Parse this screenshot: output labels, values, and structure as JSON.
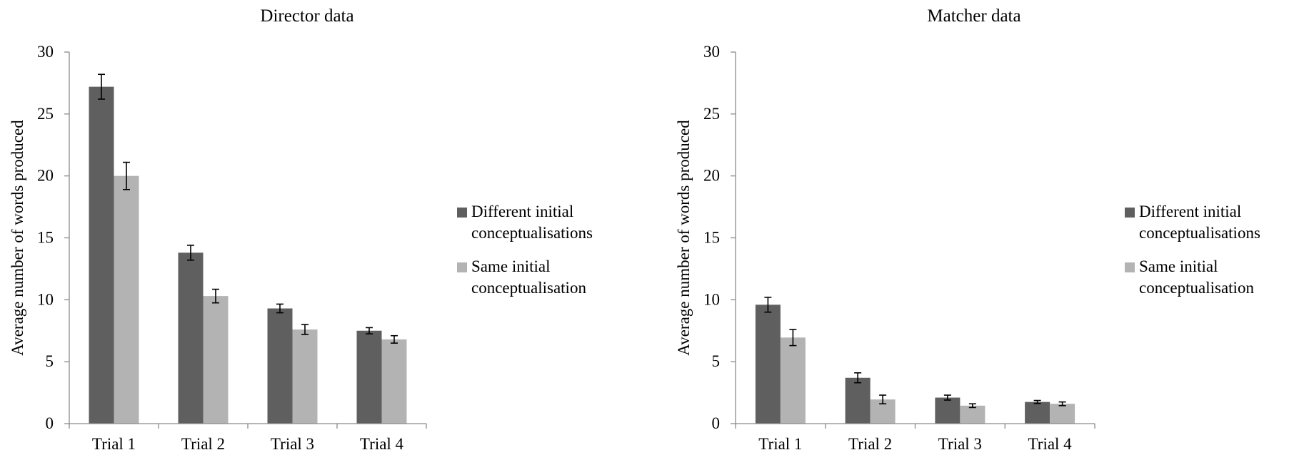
{
  "chart_data": [
    {
      "type": "bar",
      "title": "Director data",
      "xlabel": "",
      "ylabel": "Average number of words produced",
      "ylim": [
        0,
        30
      ],
      "yticks": [
        0,
        5,
        10,
        15,
        20,
        25,
        30
      ],
      "categories": [
        "Trial 1",
        "Trial 2",
        "Trial 3",
        "Trial 4"
      ],
      "grid": false,
      "legend_position": "right",
      "series": [
        {
          "name": "Different initial conceptualisations",
          "legend_lines": [
            "Different initial",
            "conceptualisations"
          ],
          "color": "#5f5f5f",
          "values": [
            27.2,
            13.8,
            9.3,
            7.5
          ],
          "errors": [
            1.0,
            0.6,
            0.35,
            0.25
          ]
        },
        {
          "name": "Same initial conceptualisation",
          "legend_lines": [
            "Same initial",
            "conceptualisation"
          ],
          "color": "#b3b3b3",
          "values": [
            20.0,
            10.3,
            7.6,
            6.8
          ],
          "errors": [
            1.1,
            0.55,
            0.4,
            0.3
          ]
        }
      ]
    },
    {
      "type": "bar",
      "title": "Matcher data",
      "xlabel": "",
      "ylabel": "Average number of words produced",
      "ylim": [
        0,
        30
      ],
      "yticks": [
        0,
        5,
        10,
        15,
        20,
        25,
        30
      ],
      "categories": [
        "Trial 1",
        "Trial 2",
        "Trial 3",
        "Trial 4"
      ],
      "grid": false,
      "legend_position": "right",
      "series": [
        {
          "name": "Different initial conceptualisations",
          "legend_lines": [
            "Different initial",
            "conceptualisations"
          ],
          "color": "#5f5f5f",
          "values": [
            9.6,
            3.7,
            2.1,
            1.75
          ],
          "errors": [
            0.6,
            0.4,
            0.2,
            0.12
          ]
        },
        {
          "name": "Same initial conceptualisation",
          "legend_lines": [
            "Same initial",
            "conceptualisation"
          ],
          "color": "#b3b3b3",
          "values": [
            6.95,
            1.95,
            1.45,
            1.6
          ],
          "errors": [
            0.65,
            0.35,
            0.15,
            0.15
          ]
        }
      ]
    }
  ]
}
